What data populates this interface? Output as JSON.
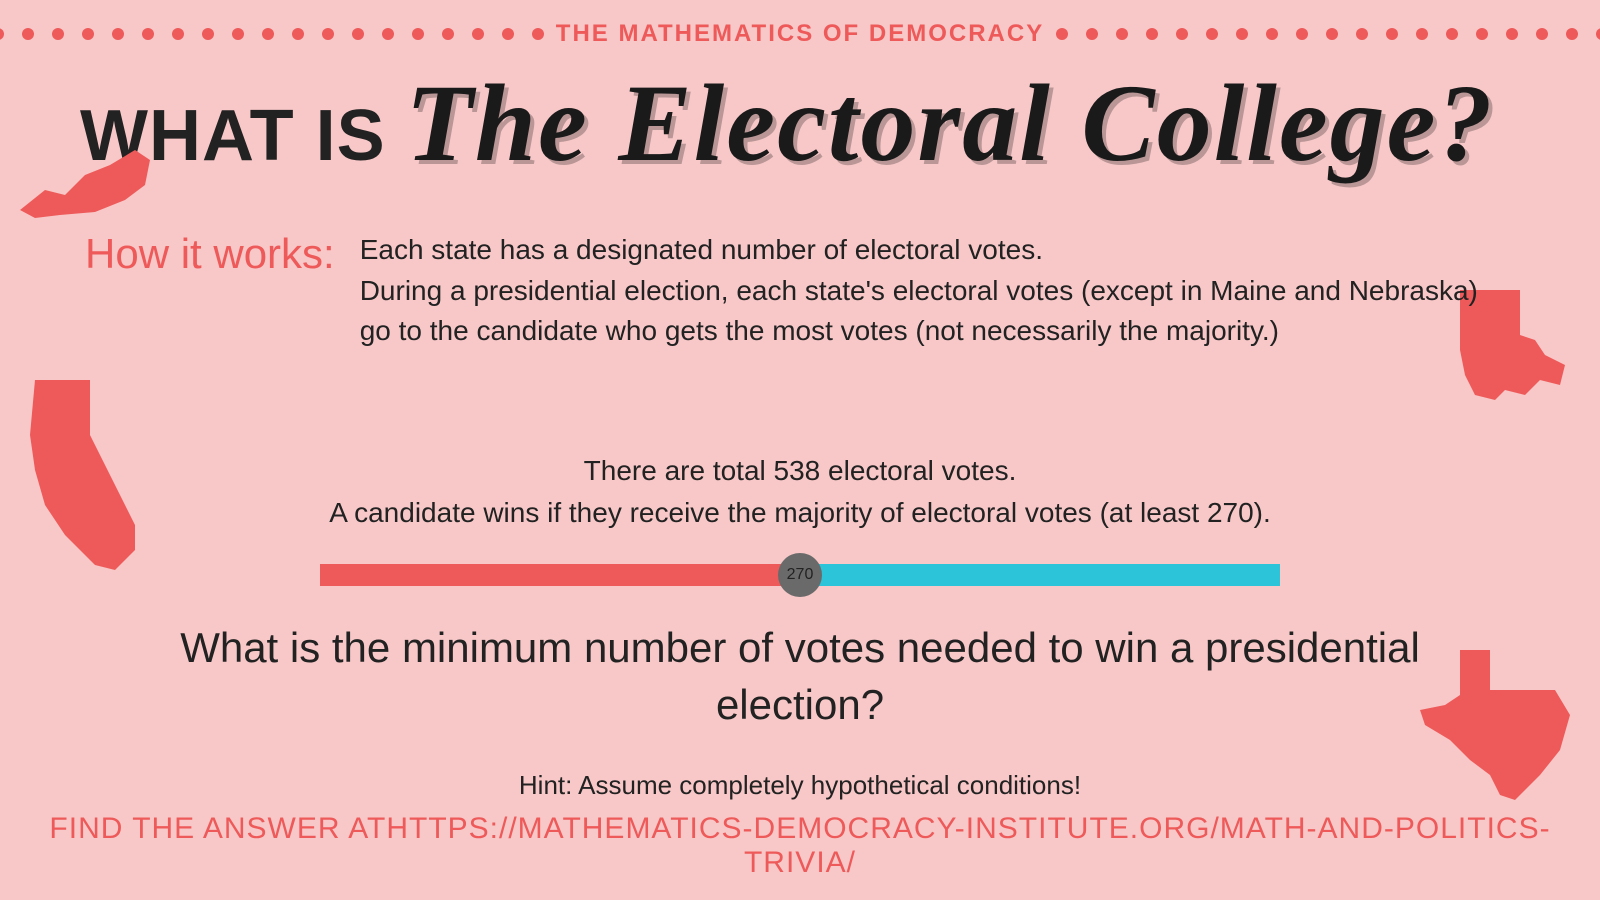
{
  "colors": {
    "background": "#f8c8c8",
    "accent": "#ee5a5a",
    "text": "#222222",
    "bar_left": "#ee5a5a",
    "bar_right": "#2bc4d8",
    "marker": "#6a6a6a"
  },
  "header": {
    "label": "The Mathematics of Democracy",
    "dots_each_side": 24
  },
  "title": {
    "prefix": "What is",
    "main": "The Electoral College?"
  },
  "how_it_works": {
    "label": "How it works:",
    "body": "Each state has a designated number of electoral votes.\nDuring a presidential election, each state's electoral votes (except in Maine and Nebraska) go to the candidate who gets the most votes (not necessarily the majority.)"
  },
  "center": {
    "line1": "There are total 538 electoral votes.",
    "line2": "A candidate wins if they receive the majority of electoral votes (at least 270)."
  },
  "progress": {
    "total": 538,
    "threshold": 270,
    "marker_label": "270"
  },
  "question": "What is the minimum number of votes needed to win a presidential election?",
  "hint": "Hint: Assume completely hypothetical conditions!",
  "footer": "Find the answer athttps://mathematics-democracy-institute.org/math-and-politics-trivia/",
  "state_shapes": [
    "virginia",
    "california",
    "louisiana",
    "texas"
  ]
}
